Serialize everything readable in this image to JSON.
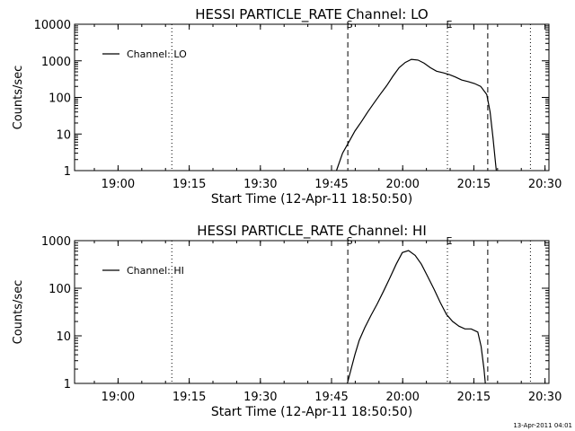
{
  "footer": {
    "timestamp": "13-Apr-2011 04:01"
  },
  "chart_data": [
    {
      "type": "line",
      "title": "HESSI PARTICLE_RATE Channel: LO",
      "xlabel": "Start Time (12-Apr-11 18:50:50)",
      "ylabel": "Counts/sec",
      "x_unit": "minutes since 18:50:50 UT",
      "xlim": [
        0,
        100
      ],
      "ylim": [
        1,
        10000
      ],
      "yscale": "log",
      "grid": false,
      "legend": {
        "label": "Channel: LO",
        "placement": "top-left"
      },
      "xticks": [
        {
          "x": 9.17,
          "label": "19:00"
        },
        {
          "x": 24.17,
          "label": "19:15"
        },
        {
          "x": 39.17,
          "label": "19:30"
        },
        {
          "x": 54.17,
          "label": "19:45"
        },
        {
          "x": 69.17,
          "label": "20:00"
        },
        {
          "x": 84.17,
          "label": "20:15"
        },
        {
          "x": 99.17,
          "label": "20:30"
        }
      ],
      "yticks": [
        {
          "y": 1,
          "label": "1"
        },
        {
          "y": 10,
          "label": "10"
        },
        {
          "y": 100,
          "label": "100"
        },
        {
          "y": 1000,
          "label": "1000"
        },
        {
          "y": 10000,
          "label": "10000"
        }
      ],
      "markers": [
        {
          "x": 20.5,
          "style": "dotted",
          "label": ""
        },
        {
          "x": 57.6,
          "style": "dashed",
          "label": "S"
        },
        {
          "x": 78.6,
          "style": "dotted",
          "label": "E"
        },
        {
          "x": 87.1,
          "style": "dashed",
          "label": ""
        },
        {
          "x": 96.1,
          "style": "dotted",
          "label": ""
        }
      ],
      "series": [
        {
          "name": "Channel: LO",
          "points": [
            [
              55.2,
              1
            ],
            [
              56.5,
              3
            ],
            [
              57.8,
              6
            ],
            [
              59.1,
              12
            ],
            [
              60.5,
              22
            ],
            [
              61.8,
              40
            ],
            [
              63.1,
              70
            ],
            [
              64.4,
              120
            ],
            [
              65.8,
              210
            ],
            [
              67.1,
              380
            ],
            [
              68.4,
              650
            ],
            [
              69.7,
              900
            ],
            [
              71.0,
              1100
            ],
            [
              72.4,
              1050
            ],
            [
              73.7,
              860
            ],
            [
              75.0,
              650
            ],
            [
              76.3,
              520
            ],
            [
              77.7,
              470
            ],
            [
              79.0,
              420
            ],
            [
              80.3,
              360
            ],
            [
              81.6,
              300
            ],
            [
              83.0,
              270
            ],
            [
              84.3,
              240
            ],
            [
              85.6,
              200
            ],
            [
              86.9,
              120
            ],
            [
              87.6,
              40
            ],
            [
              88.2,
              8
            ],
            [
              88.9,
              1
            ]
          ]
        }
      ]
    },
    {
      "type": "line",
      "title": "HESSI PARTICLE_RATE Channel: HI",
      "xlabel": "Start Time (12-Apr-11 18:50:50)",
      "ylabel": "Counts/sec",
      "x_unit": "minutes since 18:50:50 UT",
      "xlim": [
        0,
        100
      ],
      "ylim": [
        1,
        1000
      ],
      "yscale": "log",
      "grid": false,
      "legend": {
        "label": "Channel: HI",
        "placement": "top-left"
      },
      "xticks": [
        {
          "x": 9.17,
          "label": "19:00"
        },
        {
          "x": 24.17,
          "label": "19:15"
        },
        {
          "x": 39.17,
          "label": "19:30"
        },
        {
          "x": 54.17,
          "label": "19:45"
        },
        {
          "x": 69.17,
          "label": "20:00"
        },
        {
          "x": 84.17,
          "label": "20:15"
        },
        {
          "x": 99.17,
          "label": "20:30"
        }
      ],
      "yticks": [
        {
          "y": 1,
          "label": "1"
        },
        {
          "y": 10,
          "label": "10"
        },
        {
          "y": 100,
          "label": "100"
        },
        {
          "y": 1000,
          "label": "1000"
        }
      ],
      "markers": [
        {
          "x": 20.5,
          "style": "dotted",
          "label": ""
        },
        {
          "x": 57.6,
          "style": "dashed",
          "label": "S"
        },
        {
          "x": 78.6,
          "style": "dotted",
          "label": "E"
        },
        {
          "x": 87.1,
          "style": "dashed",
          "label": ""
        },
        {
          "x": 96.1,
          "style": "dotted",
          "label": ""
        }
      ],
      "series": [
        {
          "name": "Channel: HI",
          "points": [
            [
              57.5,
              1
            ],
            [
              58.3,
              2
            ],
            [
              59.1,
              4
            ],
            [
              60.0,
              8
            ],
            [
              61.2,
              15
            ],
            [
              62.5,
              27
            ],
            [
              63.8,
              47
            ],
            [
              65.1,
              85
            ],
            [
              66.4,
              160
            ],
            [
              67.8,
              320
            ],
            [
              69.1,
              560
            ],
            [
              70.4,
              620
            ],
            [
              71.8,
              490
            ],
            [
              73.1,
              320
            ],
            [
              74.4,
              180
            ],
            [
              75.8,
              95
            ],
            [
              77.1,
              50
            ],
            [
              78.4,
              28
            ],
            [
              79.7,
              20
            ],
            [
              81.0,
              16
            ],
            [
              82.3,
              14
            ],
            [
              83.6,
              14
            ],
            [
              85.0,
              12
            ],
            [
              85.7,
              6
            ],
            [
              86.3,
              2
            ],
            [
              86.6,
              1
            ]
          ]
        }
      ]
    }
  ]
}
